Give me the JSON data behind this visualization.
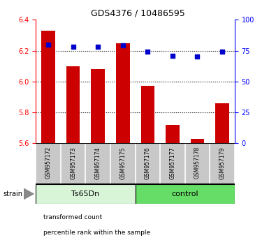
{
  "title": "GDS4376 / 10486595",
  "samples": [
    "GSM957172",
    "GSM957173",
    "GSM957174",
    "GSM957175",
    "GSM957176",
    "GSM957177",
    "GSM957178",
    "GSM957179"
  ],
  "red_values": [
    6.33,
    6.1,
    6.08,
    6.25,
    5.97,
    5.72,
    5.63,
    5.86
  ],
  "blue_values": [
    80,
    78,
    78,
    79,
    74,
    71,
    70,
    74
  ],
  "ylim_left": [
    5.6,
    6.4
  ],
  "ylim_right": [
    0,
    100
  ],
  "yticks_left": [
    5.6,
    5.8,
    6.0,
    6.2,
    6.4
  ],
  "yticks_right": [
    0,
    25,
    50,
    75,
    100
  ],
  "groups": [
    {
      "label": "Ts65Dn",
      "start": 0,
      "end": 3,
      "color": "#d8f5d8"
    },
    {
      "label": "control",
      "start": 4,
      "end": 7,
      "color": "#66dd66"
    }
  ],
  "bar_color": "#cc0000",
  "dot_color": "#0000cc",
  "bar_bottom": 5.6,
  "tick_area_color": "#c8c8c8",
  "tick_area_border": "#888888",
  "bg_color": "#ffffff",
  "legend_red_label": "transformed count",
  "legend_blue_label": "percentile rank within the sample",
  "strain_label": "strain",
  "grid_yticks": [
    5.8,
    6.0,
    6.2
  ],
  "bar_width": 0.55,
  "left_spine_color": "red",
  "right_spine_color": "blue"
}
